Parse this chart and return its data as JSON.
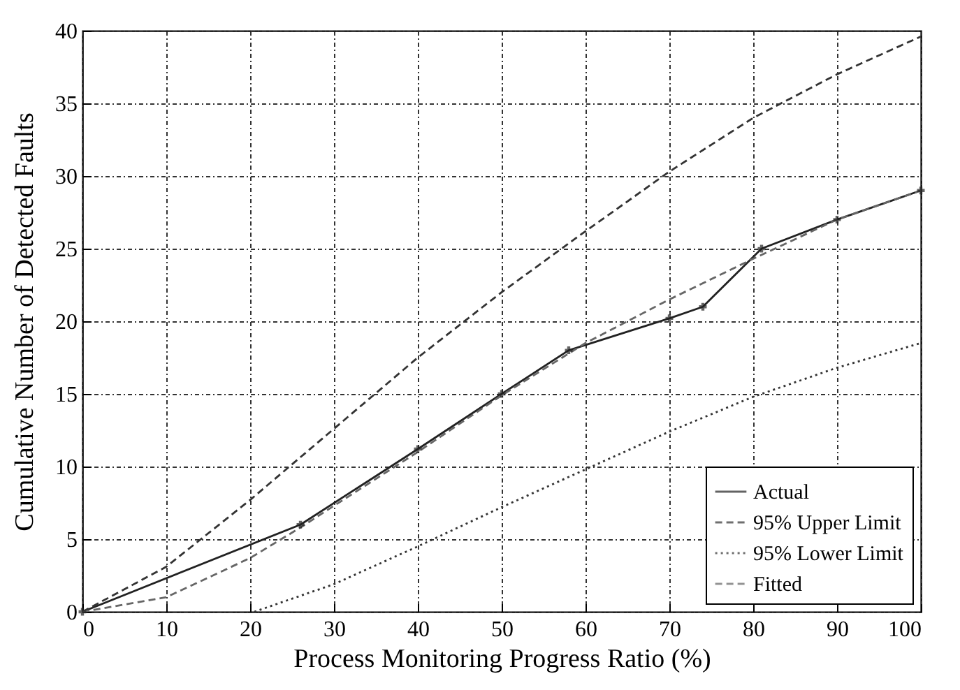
{
  "chart_data": {
    "type": "line",
    "xlabel": "Process Monitoring Progress Ratio (%)",
    "ylabel": "Cumulative Number of Detected Faults",
    "xlim": [
      0,
      100
    ],
    "xticks": [
      0,
      10,
      20,
      30,
      40,
      50,
      60,
      70,
      80,
      90,
      100
    ],
    "ylim": [
      0,
      40
    ],
    "yticks": [
      0,
      5,
      10,
      15,
      20,
      25,
      30,
      35,
      40
    ],
    "grid": true,
    "legend": "bottom right",
    "series": [
      {
        "name": "Actual",
        "color": "#222222",
        "line_style": "solid",
        "marker": "cross",
        "x": [
          0,
          26,
          40,
          50,
          58,
          70,
          74,
          81,
          90,
          100
        ],
        "values": [
          0,
          6,
          11.2,
          15,
          18,
          20.2,
          21,
          25,
          27,
          29
        ]
      },
      {
        "name": "95% Upper Limit",
        "color": "#333333",
        "line_style": "dashed",
        "marker": "none",
        "x": [
          0,
          10,
          20,
          30,
          40,
          50,
          60,
          70,
          80,
          90,
          100
        ],
        "values": [
          0,
          3.1,
          7.7,
          12.6,
          17.5,
          22,
          26.2,
          30.3,
          34,
          37,
          39.6
        ]
      },
      {
        "name": "95% Lower Limit",
        "color": "#333333",
        "line_style": "dotted",
        "marker": "none",
        "x": [
          20.5,
          30,
          40,
          50,
          60,
          70,
          80,
          90,
          100
        ],
        "values": [
          0,
          1.9,
          4.5,
          7.2,
          9.8,
          12.4,
          14.8,
          16.8,
          18.5
        ]
      },
      {
        "name": "Fitted",
        "color": "#666666",
        "line_style": "dashed",
        "marker": "none",
        "x": [
          0,
          10,
          20,
          26,
          30,
          40,
          50,
          60,
          70,
          80,
          90,
          100
        ],
        "values": [
          0,
          1,
          3.7,
          5.8,
          7.3,
          11,
          14.9,
          18.5,
          21.5,
          24.3,
          27,
          29
        ]
      }
    ]
  }
}
